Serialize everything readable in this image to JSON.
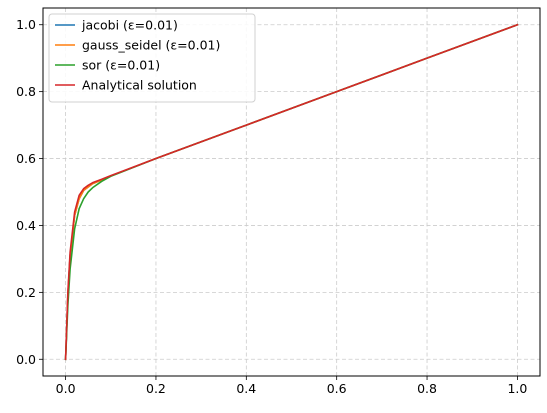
{
  "chart_data": {
    "type": "line",
    "title": "",
    "xlabel": "",
    "ylabel": "",
    "xlim": [
      -0.05,
      1.05
    ],
    "ylim": [
      -0.05,
      1.05
    ],
    "xticks": [
      0.0,
      0.2,
      0.4,
      0.6,
      0.8,
      1.0
    ],
    "yticks": [
      0.0,
      0.2,
      0.4,
      0.6,
      0.8,
      1.0
    ],
    "xtick_labels": [
      "0.0",
      "0.2",
      "0.4",
      "0.6",
      "0.8",
      "1.0"
    ],
    "ytick_labels": [
      "0.0",
      "0.2",
      "0.4",
      "0.6",
      "0.8",
      "1.0"
    ],
    "grid": true,
    "grid_style": "dashed",
    "legend_position": "upper-left",
    "series": [
      {
        "name": "jacobi (ε=0.01)",
        "color": "#1f77b4",
        "x": [
          0.0,
          0.005,
          0.01,
          0.02,
          0.03,
          0.04,
          0.05,
          0.06,
          0.08,
          0.1,
          0.2,
          0.4,
          0.6,
          0.8,
          1.0
        ],
        "y": [
          0.0,
          0.19,
          0.31,
          0.43,
          0.48,
          0.505,
          0.515,
          0.525,
          0.536,
          0.548,
          0.6,
          0.7,
          0.8,
          0.9,
          1.0
        ]
      },
      {
        "name": "gauss_seidel (ε=0.01)",
        "color": "#ff7f0e",
        "x": [
          0.0,
          0.005,
          0.01,
          0.02,
          0.03,
          0.04,
          0.05,
          0.06,
          0.08,
          0.1,
          0.2,
          0.4,
          0.6,
          0.8,
          1.0
        ],
        "y": [
          0.0,
          0.19,
          0.31,
          0.43,
          0.48,
          0.505,
          0.515,
          0.525,
          0.536,
          0.548,
          0.6,
          0.7,
          0.8,
          0.9,
          1.0
        ]
      },
      {
        "name": "sor (ε=0.01)",
        "color": "#2ca02c",
        "x": [
          0.0,
          0.005,
          0.01,
          0.02,
          0.03,
          0.04,
          0.05,
          0.06,
          0.08,
          0.1,
          0.2,
          0.4,
          0.6,
          0.8,
          1.0
        ],
        "y": [
          0.0,
          0.16,
          0.27,
          0.39,
          0.45,
          0.48,
          0.5,
          0.513,
          0.532,
          0.547,
          0.6,
          0.7,
          0.8,
          0.9,
          1.0
        ]
      },
      {
        "name": "Analytical solution",
        "color": "#d62728",
        "x": [
          0.0,
          0.005,
          0.01,
          0.02,
          0.03,
          0.04,
          0.05,
          0.06,
          0.08,
          0.1,
          0.2,
          0.4,
          0.6,
          0.8,
          1.0
        ],
        "y": [
          0.0,
          0.2,
          0.32,
          0.44,
          0.49,
          0.51,
          0.52,
          0.528,
          0.538,
          0.549,
          0.6,
          0.7,
          0.8,
          0.9,
          1.0
        ]
      }
    ]
  }
}
